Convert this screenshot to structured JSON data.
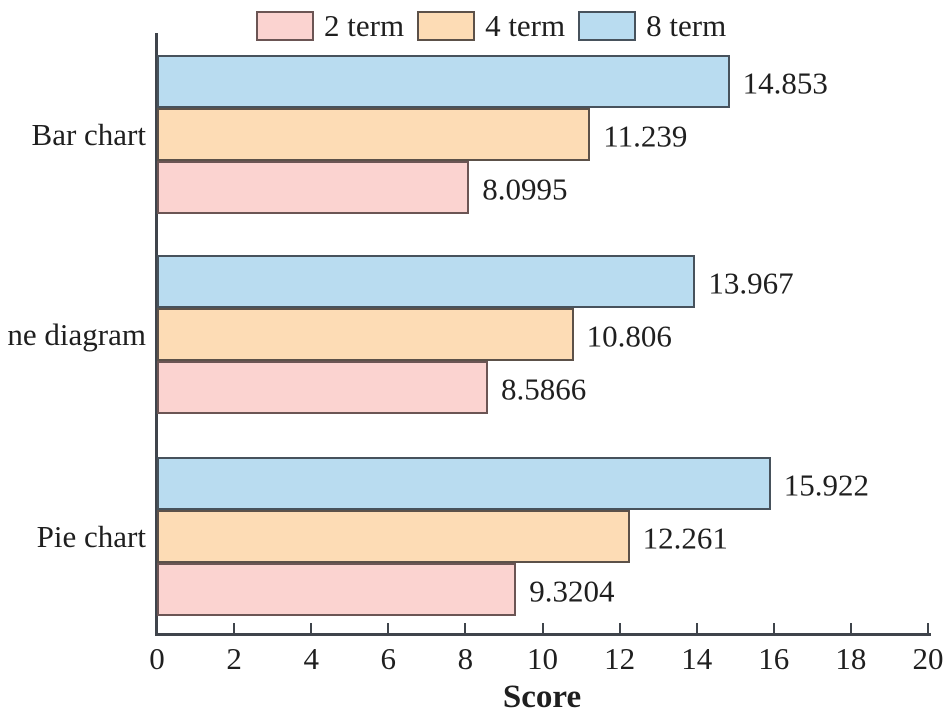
{
  "chart_data": {
    "type": "bar",
    "orientation": "horizontal",
    "title": "",
    "xlabel": "Score",
    "ylabel": "",
    "xlim": [
      0,
      20
    ],
    "xticks": [
      0,
      2,
      4,
      6,
      8,
      10,
      12,
      14,
      16,
      18,
      20
    ],
    "grid": false,
    "legend_position": "top",
    "categories": [
      "Bar chart",
      "ne diagram",
      "Pie chart"
    ],
    "bar_order_top_to_bottom": [
      "8 term",
      "4 term",
      "2 term"
    ],
    "series": [
      {
        "name": "2 term",
        "fill_color": "#fbd3d0",
        "edge_color": "#6b5554",
        "values": [
          8.0995,
          8.5866,
          9.3204
        ],
        "value_labels": [
          "8.0995",
          "8.5866",
          "9.3204"
        ]
      },
      {
        "name": "4 term",
        "fill_color": "#fddcb5",
        "edge_color": "#5c5149",
        "values": [
          11.239,
          10.806,
          12.261
        ],
        "value_labels": [
          "11.239",
          "10.806",
          "12.261"
        ]
      },
      {
        "name": "8 term",
        "fill_color": "#b9dcf0",
        "edge_color": "#47525c",
        "values": [
          14.853,
          13.967,
          15.922
        ],
        "value_labels": [
          "14.853",
          "13.967",
          "15.922"
        ]
      }
    ],
    "axis_color": "#3f444b",
    "text_color": "#1f1f1f"
  }
}
